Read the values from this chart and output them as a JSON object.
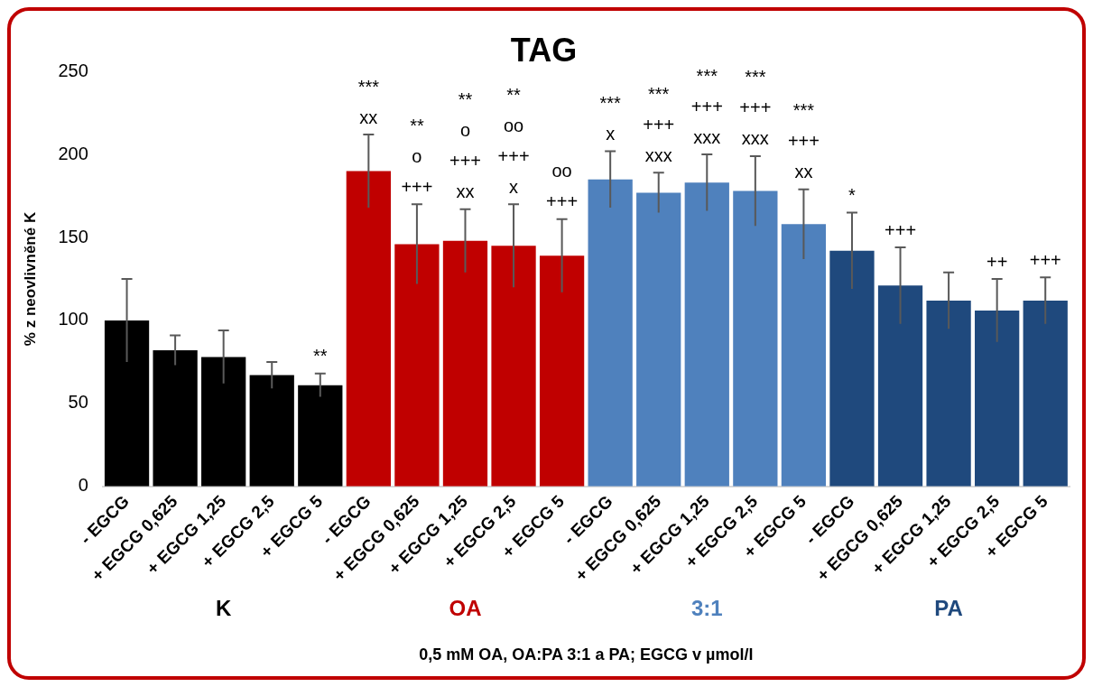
{
  "chart_data": {
    "type": "bar",
    "title": "TAG",
    "xlabel": "0,5 mM OA, OA:PA 3:1 a PA; EGCG v µmol/l",
    "ylabel": "% z neovlivněné K",
    "categories": [
      "- EGCG",
      "+ EGCG 0,625",
      "+ EGCG 1,25",
      "+ EGCG 2,5",
      "+ EGCG 5",
      "- EGCG",
      "+ EGCG 0,625",
      "+ EGCG 1,25",
      "+ EGCG 2,5",
      "+ EGCG 5",
      "- EGCG",
      "+ EGCG 0,625",
      "+ EGCG 1,25",
      "+ EGCG 2,5",
      "+ EGCG 5",
      "- EGCG",
      "+ EGCG 0,625",
      "+ EGCG 1,25",
      "+ EGCG 2,5",
      "+ EGCG 5"
    ],
    "series": [
      {
        "name": "K",
        "color": "#000000",
        "values": [
          100,
          82,
          78,
          67,
          61,
          null,
          null,
          null,
          null,
          null,
          null,
          null,
          null,
          null,
          null,
          null,
          null,
          null,
          null,
          null
        ],
        "errors": [
          25,
          9,
          16,
          8,
          7,
          null,
          null,
          null,
          null,
          null,
          null,
          null,
          null,
          null,
          null,
          null,
          null,
          null,
          null,
          null
        ],
        "value_labels": [
          null,
          null,
          null,
          null,
          "**",
          null,
          null,
          null,
          null,
          null,
          null,
          null,
          null,
          null,
          null,
          null,
          null,
          null,
          null,
          null
        ]
      },
      {
        "name": "OA",
        "color": "#c00000",
        "values": [
          null,
          null,
          null,
          null,
          null,
          190,
          146,
          148,
          145,
          139,
          null,
          null,
          null,
          null,
          null,
          null,
          null,
          null,
          null,
          null
        ],
        "errors": [
          null,
          null,
          null,
          null,
          null,
          22,
          24,
          19,
          25,
          22,
          null,
          null,
          null,
          null,
          null,
          null,
          null,
          null,
          null,
          null
        ],
        "value_labels": [
          null,
          null,
          null,
          null,
          null,
          "***\nxx",
          "**\no\n+++",
          "**\no\n+++\nxx",
          "**\noo\n+++\nx",
          "oo\n+++",
          null,
          null,
          null,
          null,
          null,
          null,
          null,
          null,
          null,
          null
        ]
      },
      {
        "name": "3:1",
        "color": "#4f81bd",
        "values": [
          null,
          null,
          null,
          null,
          null,
          null,
          null,
          null,
          null,
          null,
          185,
          177,
          183,
          178,
          158,
          null,
          null,
          null,
          null,
          null
        ],
        "errors": [
          null,
          null,
          null,
          null,
          null,
          null,
          null,
          null,
          null,
          null,
          17,
          12,
          17,
          21,
          21,
          null,
          null,
          null,
          null,
          null
        ],
        "value_labels": [
          null,
          null,
          null,
          null,
          null,
          null,
          null,
          null,
          null,
          null,
          "***\nx",
          "***\n+++\nxxx",
          "***\n+++\nxxx",
          "***\n+++\nxxx",
          "***\n+++\nxx",
          null,
          null,
          null,
          null,
          null
        ]
      },
      {
        "name": "PA",
        "color": "#1f497d",
        "values": [
          null,
          null,
          null,
          null,
          null,
          null,
          null,
          null,
          null,
          null,
          null,
          null,
          null,
          null,
          null,
          142,
          121,
          112,
          106,
          112
        ],
        "errors": [
          null,
          null,
          null,
          null,
          null,
          null,
          null,
          null,
          null,
          null,
          null,
          null,
          null,
          null,
          null,
          23,
          23,
          17,
          19,
          14
        ],
        "value_labels": [
          null,
          null,
          null,
          null,
          null,
          null,
          null,
          null,
          null,
          null,
          null,
          null,
          null,
          null,
          null,
          "*",
          "+++",
          null,
          "++",
          "+++"
        ]
      }
    ],
    "ylim": [
      0,
      250
    ],
    "yticks": [
      0,
      50,
      100,
      150,
      200,
      250
    ],
    "grid": false,
    "legend": false
  }
}
